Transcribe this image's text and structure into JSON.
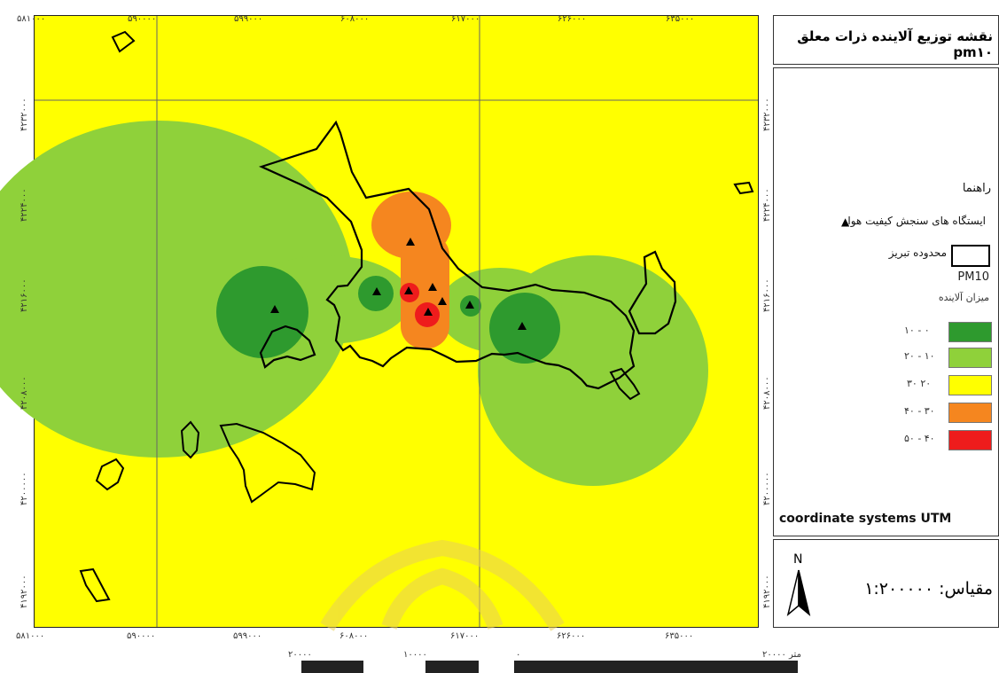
{
  "map": {
    "title": "نقشه توزیع آلاینده ذرات معلق pm۱۰",
    "coordinate_system": "coordinate systems UTM",
    "x_ticks_top": [
      "۵۸۱۰۰۰",
      "۵۹۰۰۰۰",
      "۵۹۹۰۰۰",
      "۶۰۸۰۰۰",
      "۶۱۷۰۰۰",
      "۶۲۶۰۰۰",
      "۶۳۵۰۰۰"
    ],
    "x_ticks_bottom": [
      "۵۸۱۰۰۰",
      "۵۹۰۰۰۰",
      "۵۹۹۰۰۰",
      "۶۰۸۰۰۰",
      "۶۱۷۰۰۰",
      "۶۲۶۰۰۰",
      "۶۳۵۰۰۰"
    ],
    "y_ticks": [
      "۴۲۳۲۰۰۰",
      "۴۲۲۴۰۰۰",
      "۴۲۱۶۰۰۰",
      "۴۲۰۸۰۰۰",
      "۴۲۰۰۰۰۰",
      "۴۱۹۲۰۰۰"
    ],
    "background_class_color": "#ffff00"
  },
  "legend": {
    "heading": "راهنما",
    "station_label": "ایستگاه های سنجش کیفیت هوا",
    "boundary_label": "محدوده تبریز",
    "pm_label": "PM10",
    "pollutant_label": "میزان آلاینده",
    "classes": [
      {
        "range": "۱۰ - ۰",
        "color": "#2e9a2e"
      },
      {
        "range": "۲۰ - ۱۰",
        "color": "#8fd13a"
      },
      {
        "range": "۳۰ ۲۰",
        "color": "#ffff00"
      },
      {
        "range": "۴۰ - ۳۰",
        "color": "#f5861f"
      },
      {
        "range": "۵۰ - ۴۰",
        "color": "#ee1c1c"
      }
    ]
  },
  "scale": {
    "north": "N",
    "label": "مقیاس: ۱:۲۰۰۰۰۰",
    "bar_labels": [
      "۲۰۰۰۰",
      "۱۰۰۰۰",
      "۰",
      "متر ۲۰۰۰۰"
    ]
  }
}
